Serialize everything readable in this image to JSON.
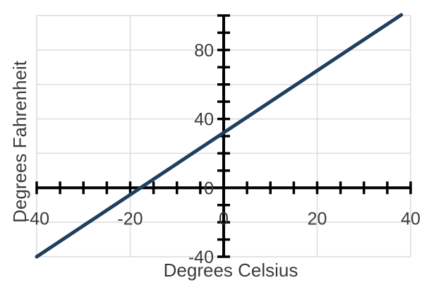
{
  "chart_data": {
    "type": "line",
    "title": "",
    "xlabel": "Degrees Celsius",
    "ylabel": "Degrees Fahrenheit",
    "xlim": [
      -40,
      40
    ],
    "ylim": [
      -40,
      100
    ],
    "x_tick_labels": [
      "-40",
      "-20",
      "0",
      "20",
      "40"
    ],
    "y_tick_labels": [
      "-40",
      "0",
      "40",
      "80"
    ],
    "grid": true,
    "axes_through_origin": true,
    "line_color": "#1f3f5f",
    "series": [
      {
        "x": [
          -40,
          38
        ],
        "y": [
          -40,
          100.4
        ]
      }
    ]
  }
}
